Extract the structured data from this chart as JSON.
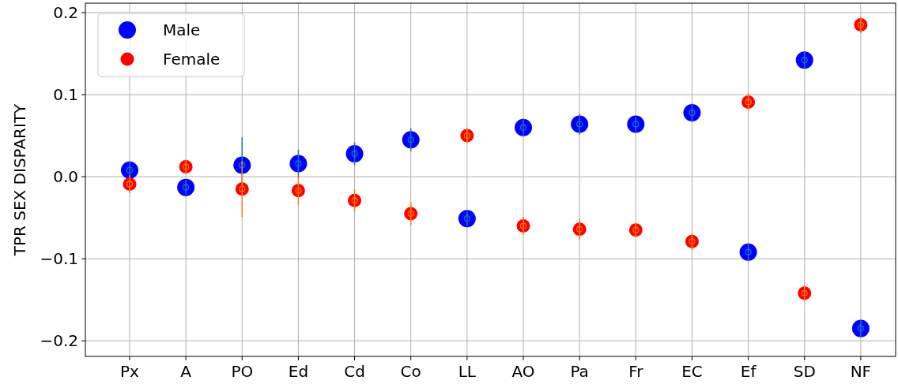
{
  "chart_data": {
    "type": "scatter",
    "ylabel": "TPR SEX DISPARITY",
    "categories": [
      "Px",
      "A",
      "PO",
      "Ed",
      "Cd",
      "Co",
      "LL",
      "AO",
      "Pa",
      "Fr",
      "EC",
      "Ef",
      "SD",
      "NF"
    ],
    "series": [
      {
        "name": "Male",
        "color": "#0000ff",
        "values": [
          0.008,
          -0.013,
          0.014,
          0.016,
          0.028,
          0.045,
          -0.051,
          0.06,
          0.064,
          0.064,
          0.078,
          -0.092,
          0.142,
          -0.185
        ],
        "errors": [
          0.011,
          0.009,
          0.034,
          0.017,
          0.014,
          0.014,
          0.009,
          0.011,
          0.013,
          0.009,
          0.011,
          0.011,
          0.01,
          0.01
        ]
      },
      {
        "name": "Female",
        "color": "#ff0000",
        "values": [
          -0.009,
          0.012,
          -0.015,
          -0.017,
          -0.029,
          -0.045,
          0.05,
          -0.06,
          -0.064,
          -0.065,
          -0.079,
          0.091,
          -0.142,
          0.185
        ],
        "errors": [
          0.011,
          0.009,
          0.034,
          0.017,
          0.014,
          0.014,
          0.009,
          0.011,
          0.013,
          0.009,
          0.011,
          0.011,
          0.01,
          0.01
        ]
      }
    ],
    "ylim": [
      -0.219,
      0.2115
    ],
    "yticks": [
      {
        "value": -0.2,
        "label": "−0.2"
      },
      {
        "value": -0.1,
        "label": "−0.1"
      },
      {
        "value": 0,
        "label": "0.0"
      },
      {
        "value": 0.1,
        "label": "0.1"
      },
      {
        "value": 0.2,
        "label": "0.2"
      }
    ],
    "grid": true,
    "legend": "top left",
    "marker": "circle"
  }
}
